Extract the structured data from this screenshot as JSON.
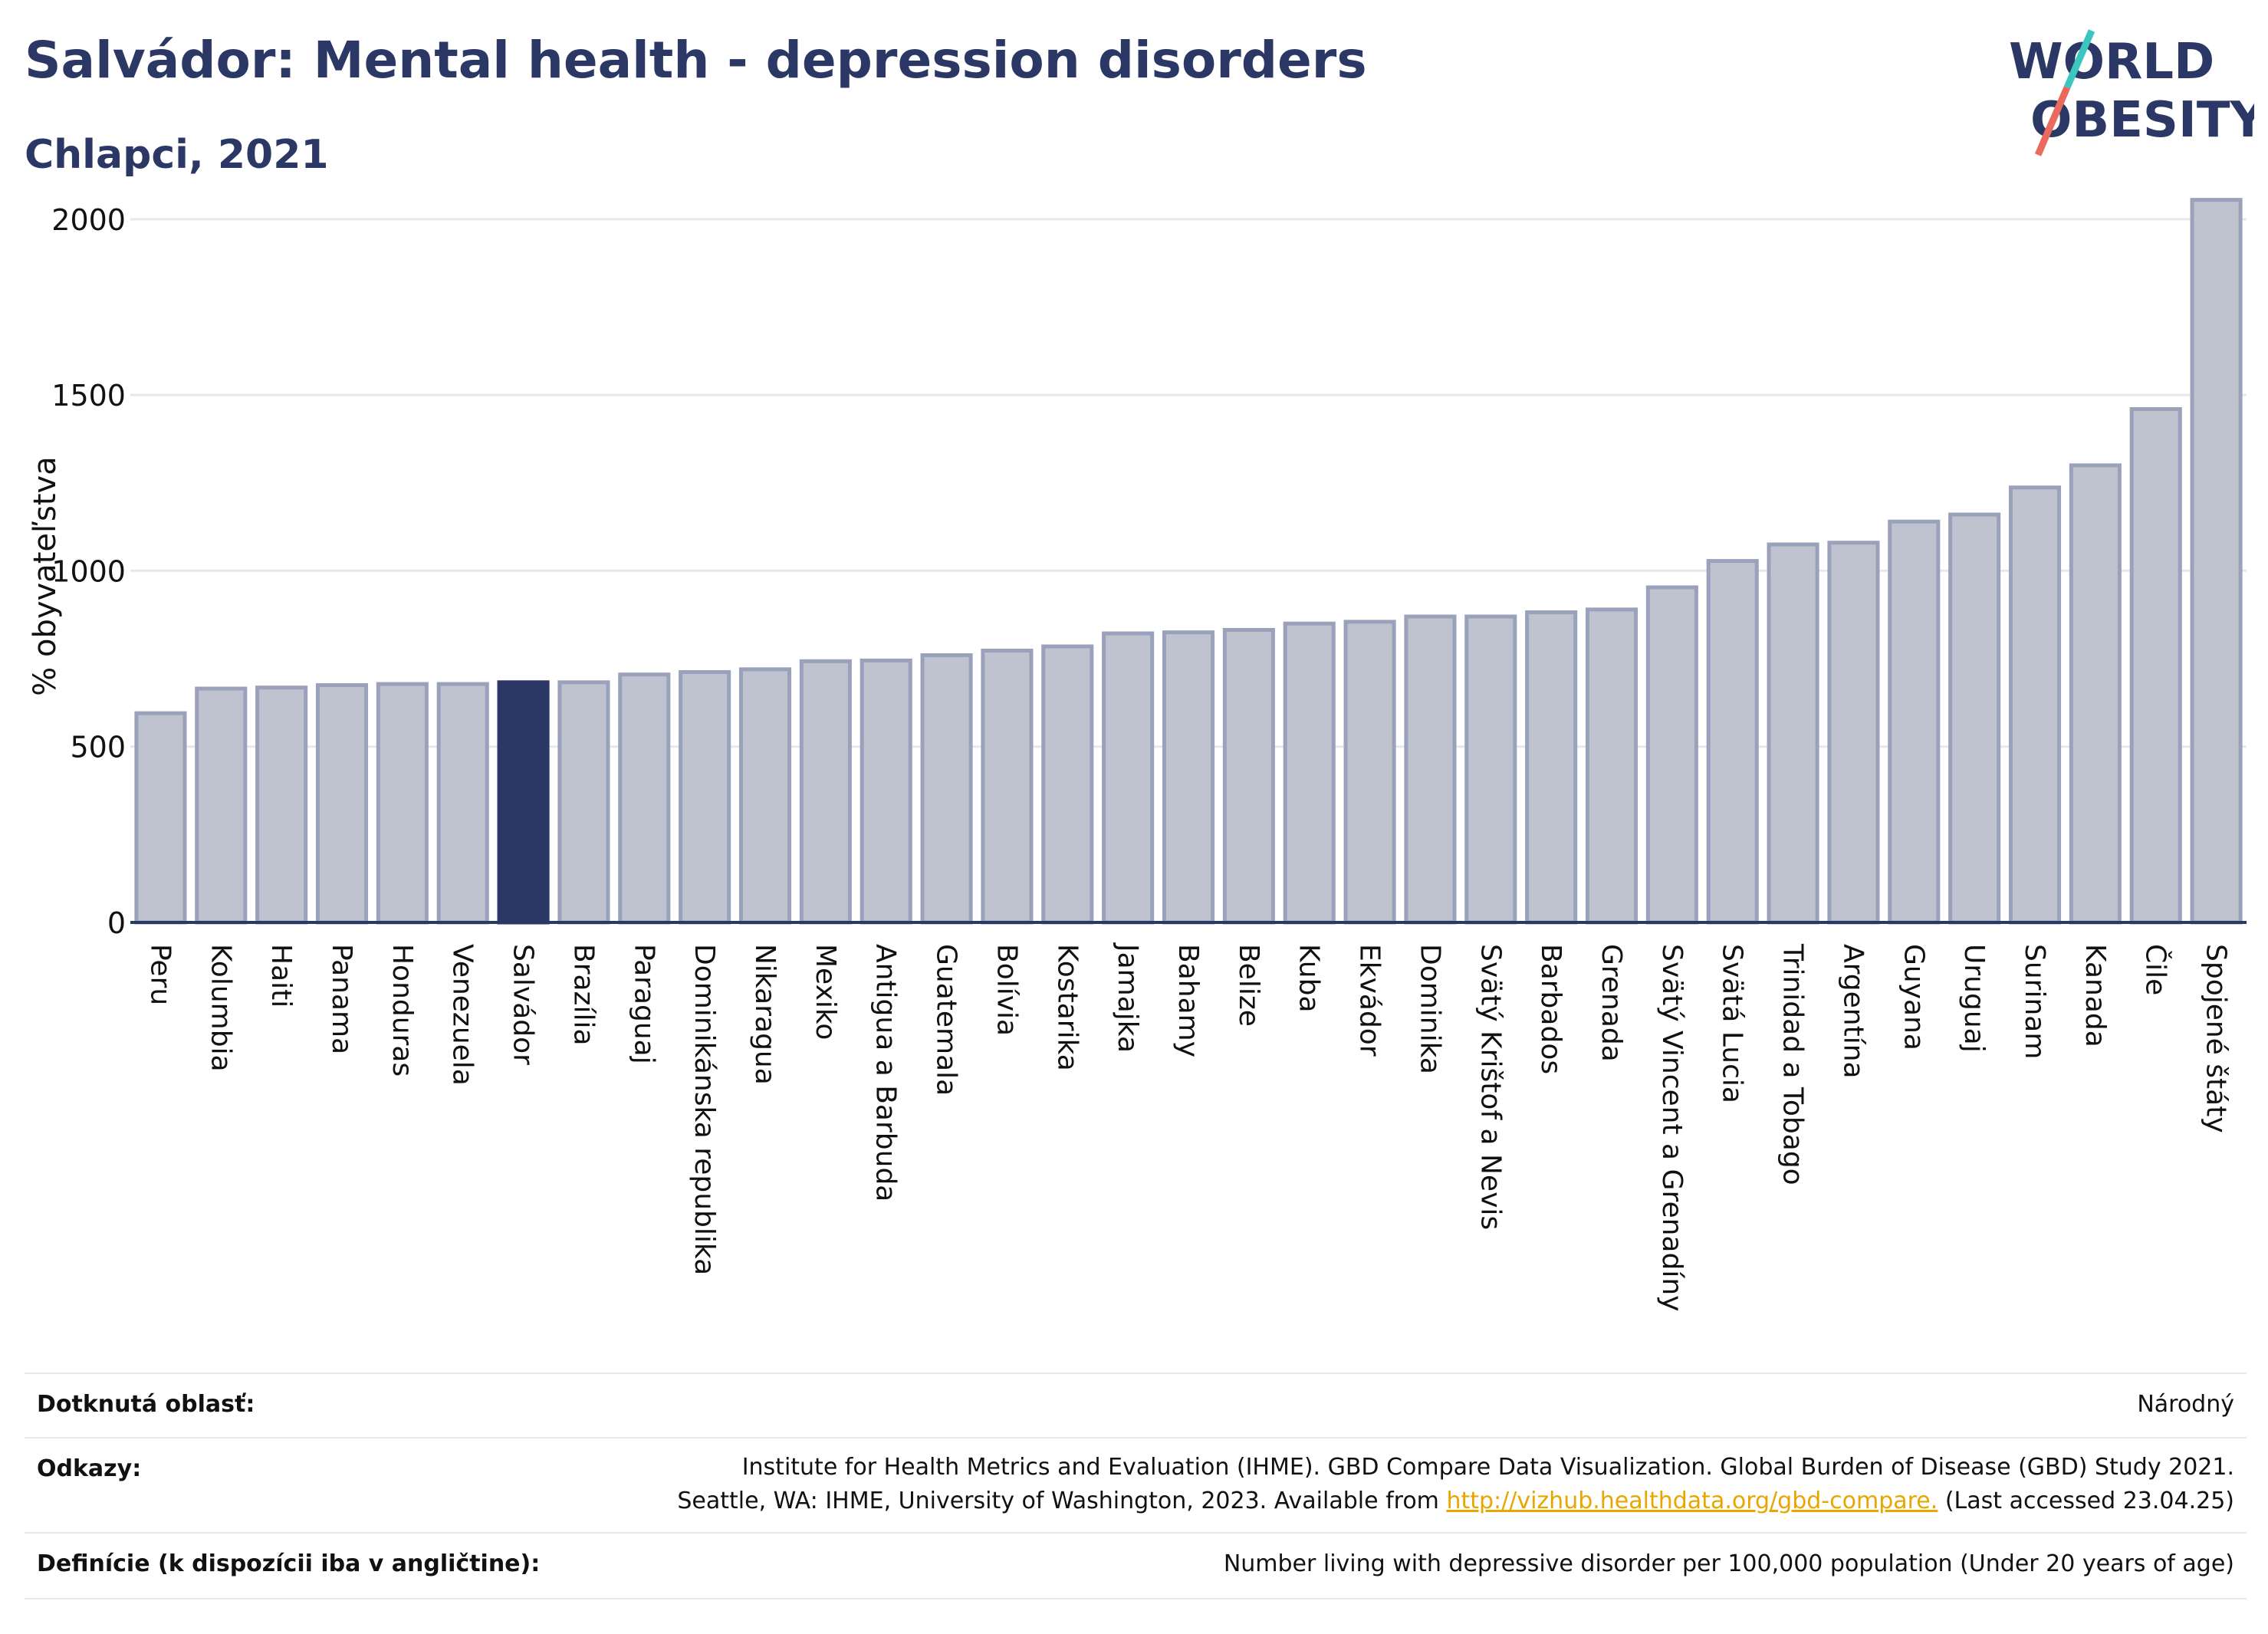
{
  "header": {
    "title": "Salvádor: Mental health - depression disorders",
    "subtitle": "Chlapci, 2021"
  },
  "logo": {
    "line1": "WORLD",
    "line2": "OBESITY"
  },
  "chart_data": {
    "type": "bar",
    "ylabel": "% obyvateľstva",
    "xlabel": "",
    "ylim": [
      0,
      2100
    ],
    "yticks": [
      0,
      500,
      1000,
      1500,
      2000
    ],
    "grid": true,
    "categories": [
      "Peru",
      "Kolumbia",
      "Haiti",
      "Panama",
      "Honduras",
      "Venezuela",
      "Salvádor",
      "Brazília",
      "Paraguaj",
      "Dominikánska republika",
      "Nikaragua",
      "Mexiko",
      "Antigua a Barbuda",
      "Guatemala",
      "Bolívia",
      "Kostarika",
      "Jamajka",
      "Bahamy",
      "Belize",
      "Kuba",
      "Ekvádor",
      "Dominika",
      "Svätý Krištof a Nevis",
      "Barbados",
      "Grenada",
      "Svätý Vincent a Grenadíny",
      "Svätá Lucia",
      "Trinidad a Tobago",
      "Argentína",
      "Guyana",
      "Uruguaj",
      "Surinam",
      "Kanada",
      "Čile",
      "Spojené štáty"
    ],
    "values": [
      595,
      665,
      668,
      675,
      678,
      678,
      683,
      683,
      705,
      712,
      720,
      743,
      745,
      760,
      773,
      785,
      822,
      825,
      832,
      850,
      855,
      870,
      870,
      882,
      890,
      953,
      1028,
      1075,
      1080,
      1140,
      1160,
      1237,
      1300,
      1460,
      2055
    ],
    "highlight": "Salvádor",
    "colors": {
      "bar": "#bfc3d0",
      "bar_border": "#9aa1ba",
      "highlight": "#2b3866",
      "axis": "#2b3866",
      "grid": "#e6e8ef"
    }
  },
  "footer": {
    "area_label": "Dotknutá oblasť:",
    "area_value": "Národný",
    "refs_label": "Odkazy:",
    "refs_line1": "Institute for Health Metrics and Evaluation (IHME). GBD Compare Data Visualization. Global Burden of Disease (GBD) Study 2021.",
    "refs_line2_pre": "Seattle, WA: IHME, University of Washington, 2023. Available from ",
    "refs_link": "http://vizhub.healthdata.org/gbd-compare.",
    "refs_line2_post": " (Last accessed 23.04.25)",
    "def_label": "Definície (k dispozícii iba v angličtine):",
    "def_value": "Number living with depressive disorder per 100,000 population (Under 20 years of age)"
  }
}
